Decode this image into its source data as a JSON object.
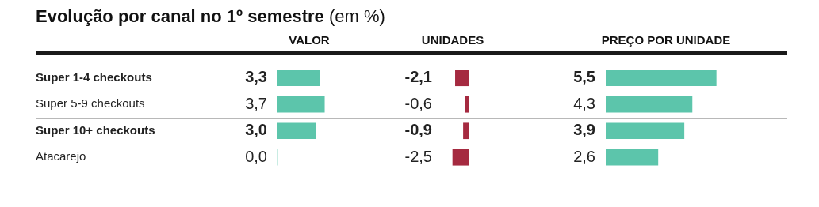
{
  "chart_data": [
    {
      "type": "bar",
      "title": "Evolução por canal no 1º semestre",
      "subtitle": "(em %)",
      "xlabel": "VALOR",
      "orientation": "horizontal",
      "categories": [
        "Super 1-4 checkouts",
        "Super 5-9 checkouts",
        "Super 10+ checkouts",
        "Atacarejo"
      ],
      "values": [
        3.3,
        3.7,
        3.0,
        0.0
      ],
      "value_labels": [
        "3,3",
        "3,7",
        "3,0",
        "0,0"
      ],
      "color": "#5cc5ab",
      "tick_labels": "y",
      "grid": "y",
      "legend": false
    },
    {
      "type": "bar",
      "xlabel": "UNIDADES",
      "orientation": "horizontal",
      "values": [
        -2.1,
        -0.6,
        -0.9,
        -2.5
      ],
      "value_labels": [
        "-2,1",
        "-0,6",
        "-0,9",
        "-2,5"
      ],
      "color": "#a52a40",
      "tick_labels": false,
      "grid": "y",
      "legend": false
    },
    {
      "type": "bar",
      "xlabel": "PREÇO POR UNIDADE",
      "orientation": "horizontal",
      "values": [
        5.5,
        4.3,
        3.9,
        2.6
      ],
      "value_labels": [
        "5,5",
        "4,3",
        "3,9",
        "2,6"
      ],
      "color": "#5cc5ab",
      "tick_labels": false,
      "grid": "y",
      "legend": false
    }
  ]
}
